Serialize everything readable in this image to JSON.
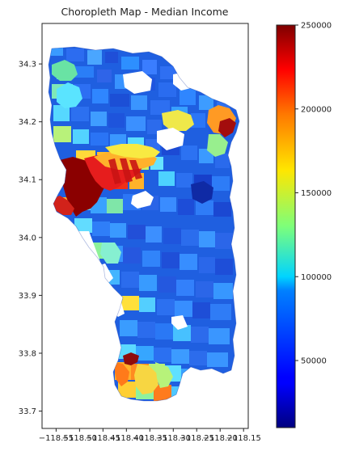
{
  "chart_data": {
    "type": "choropleth_map",
    "title": "Choropleth Map - Median Income",
    "x_axis": {
      "ticks": [
        -118.55,
        -118.5,
        -118.45,
        -118.4,
        -118.35,
        -118.3,
        -118.25,
        -118.2,
        -118.15
      ],
      "tick_labels": [
        "−118.55",
        "−118.50",
        "−118.45",
        "−118.40",
        "−118.35",
        "−118.30",
        "−118.25",
        "−118.20",
        "−118.15"
      ],
      "range": [
        -118.58,
        -118.14
      ]
    },
    "y_axis": {
      "ticks": [
        33.7,
        33.8,
        33.9,
        34.0,
        34.1,
        34.2,
        34.3
      ],
      "tick_labels": [
        "33.7",
        "33.8",
        "33.9",
        "34.0",
        "34.1",
        "34.2",
        "34.3"
      ],
      "range": [
        33.67,
        34.37
      ]
    },
    "colorbar": {
      "colormap": "jet",
      "range": [
        10000,
        250000
      ],
      "ticks": [
        50000,
        100000,
        150000,
        200000,
        250000
      ],
      "tick_labels": [
        "50000",
        "100000",
        "150000",
        "200000",
        "250000"
      ]
    },
    "grid": false
  }
}
